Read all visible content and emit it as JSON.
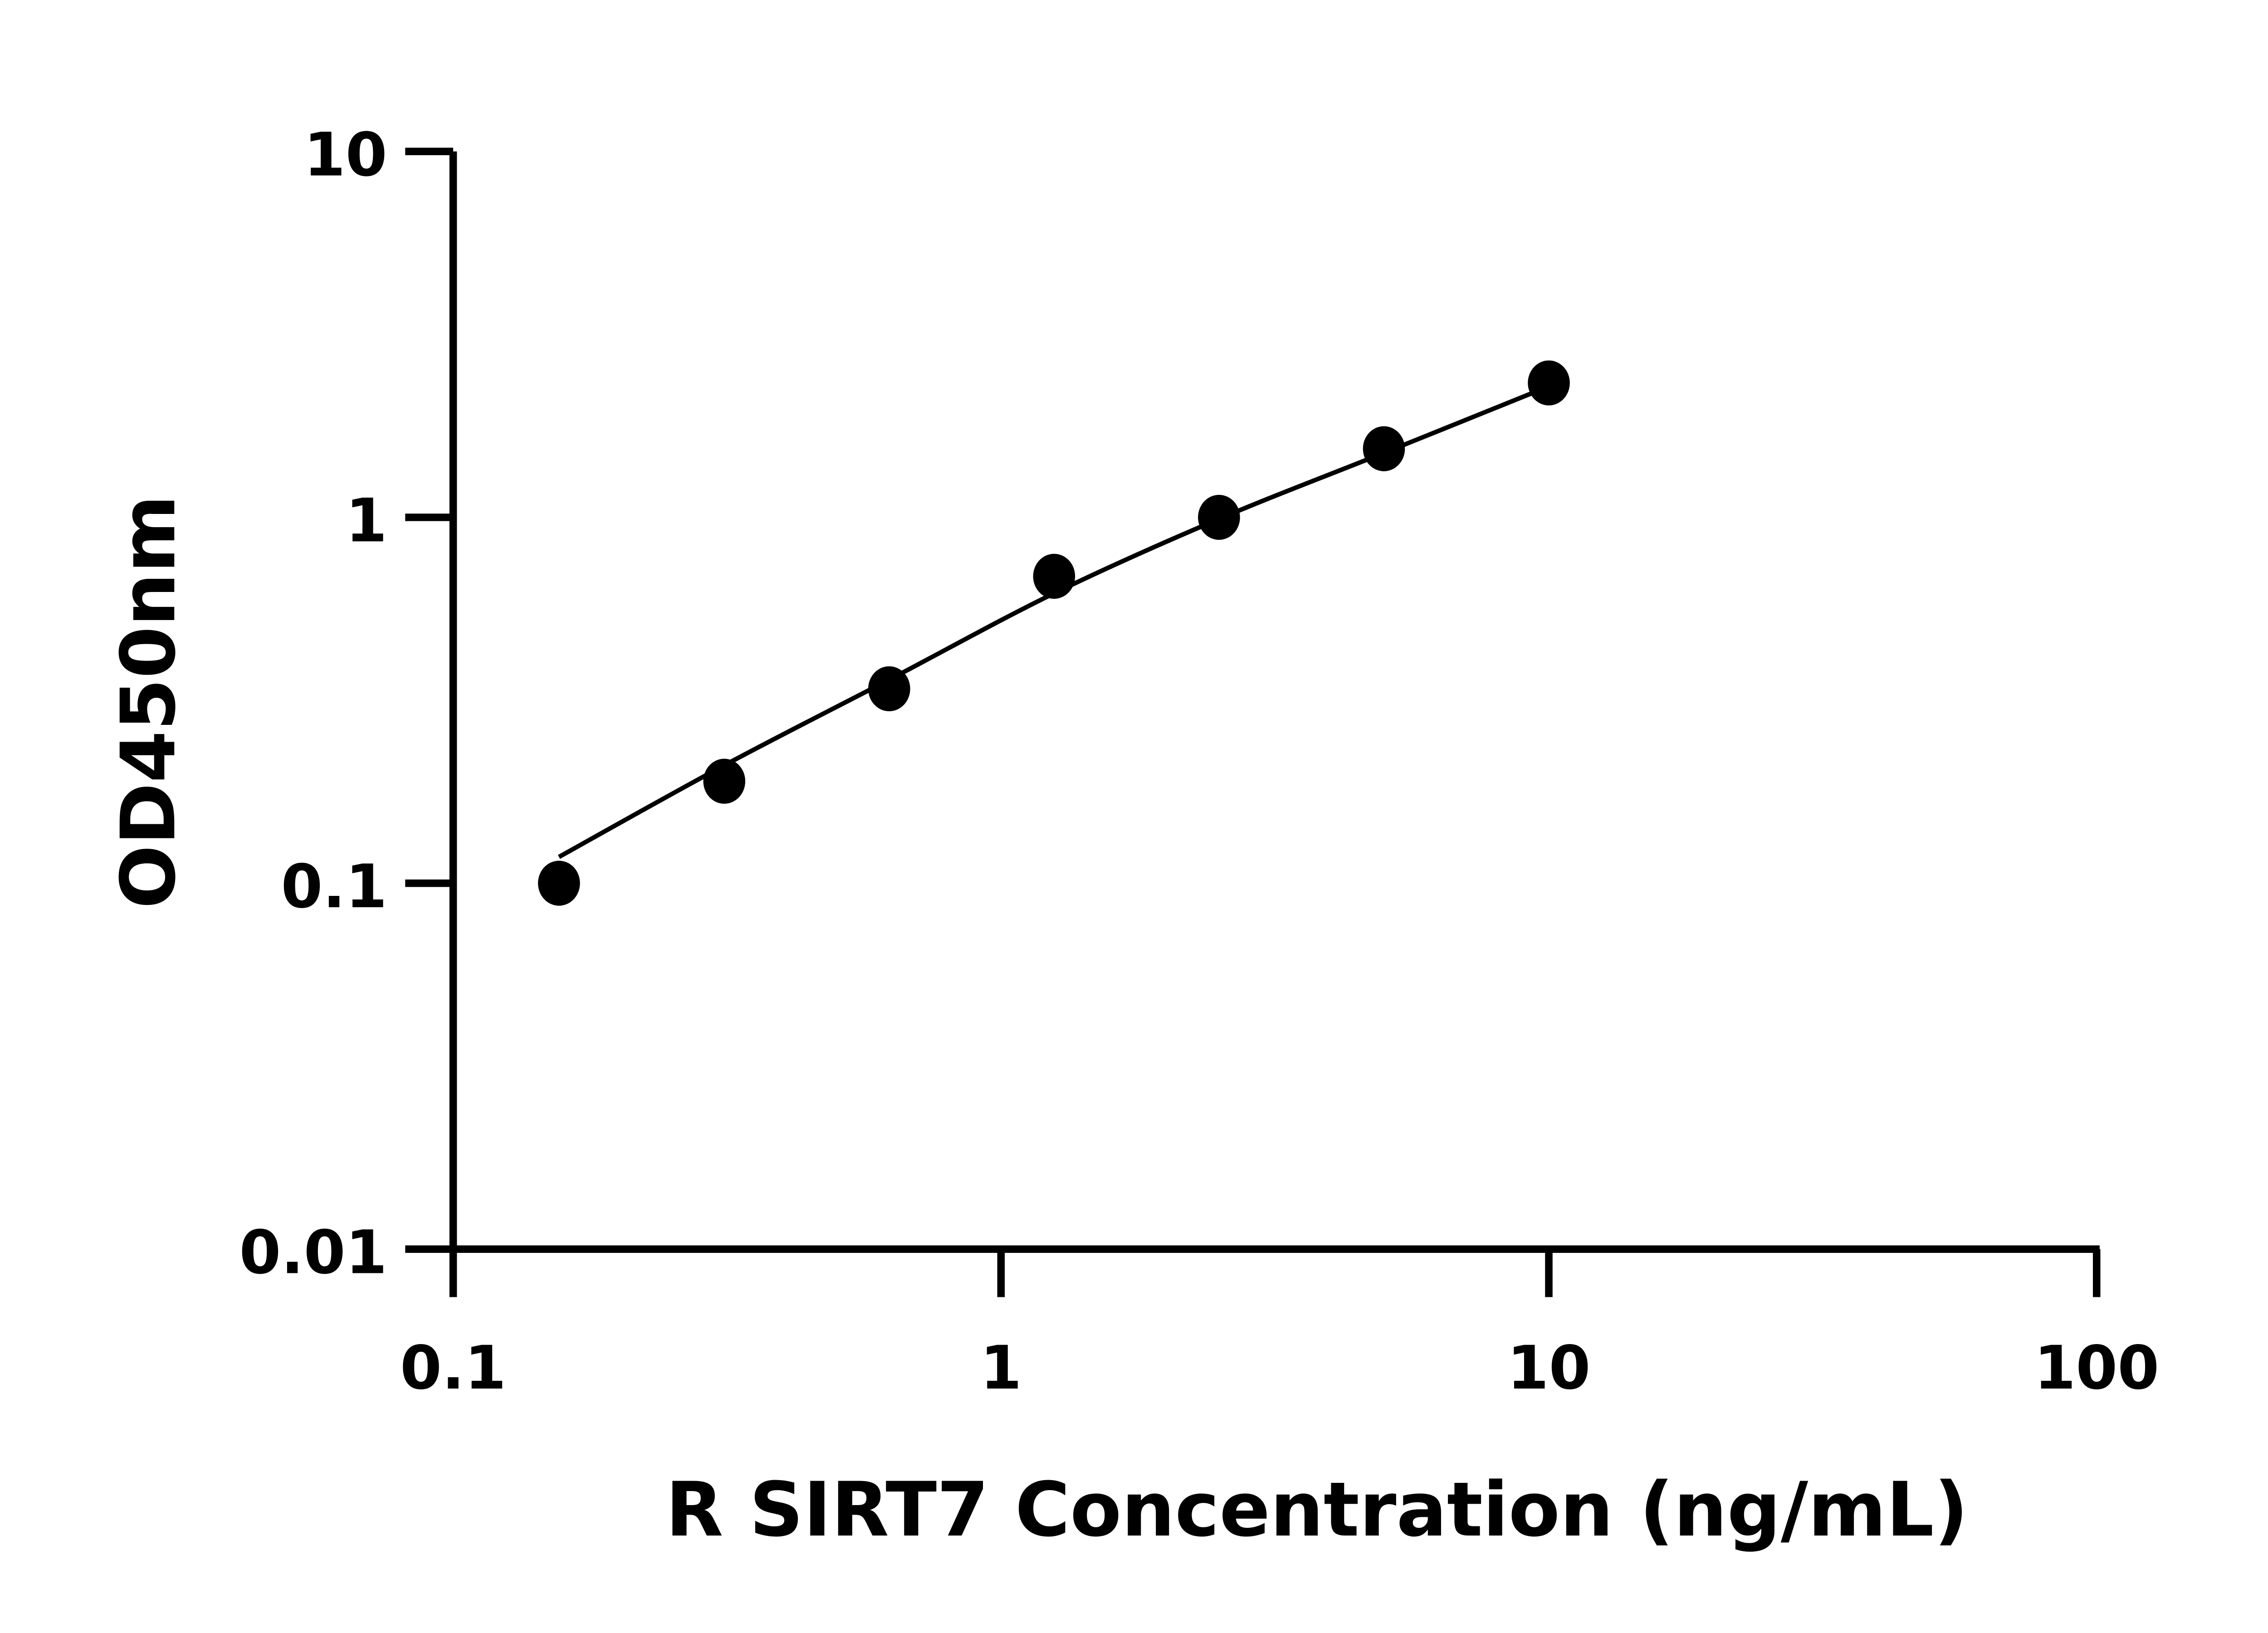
{
  "chart_data": {
    "type": "scatter",
    "title": "",
    "xlabel": "R SIRT7 Concentration (ng/mL)",
    "ylabel": "OD450nm",
    "x_scale": "log",
    "y_scale": "log",
    "xlim": [
      0.1,
      100
    ],
    "ylim": [
      0.01,
      10
    ],
    "x_ticks": [
      "0.1",
      "1",
      "10",
      "100"
    ],
    "y_ticks": [
      "0.01",
      "0.1",
      "1",
      "10"
    ],
    "grid": false,
    "legend": "none",
    "marker_color": "#000000",
    "points": [
      {
        "x": 0.156,
        "y": 0.1
      },
      {
        "x": 0.3125,
        "y": 0.19
      },
      {
        "x": 0.625,
        "y": 0.34
      },
      {
        "x": 1.25,
        "y": 0.69
      },
      {
        "x": 2.5,
        "y": 1.0
      },
      {
        "x": 5,
        "y": 1.54
      },
      {
        "x": 10,
        "y": 2.33
      }
    ],
    "fit_curve": [
      {
        "x": 0.156,
        "y": 0.118
      },
      {
        "x": 0.3125,
        "y": 0.21
      },
      {
        "x": 0.625,
        "y": 0.36
      },
      {
        "x": 1.25,
        "y": 0.62
      },
      {
        "x": 2.5,
        "y": 0.99
      },
      {
        "x": 5,
        "y": 1.5
      },
      {
        "x": 10,
        "y": 2.28
      }
    ]
  }
}
